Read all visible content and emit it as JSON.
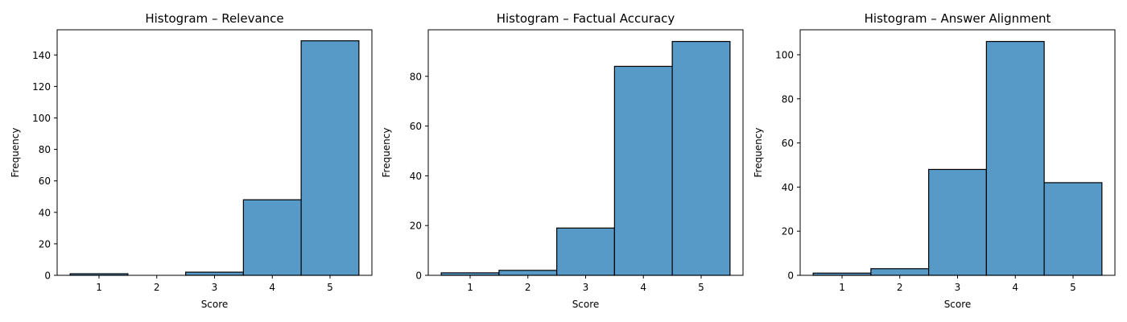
{
  "chart_data": [
    {
      "type": "bar",
      "title": "Histogram – Relevance",
      "xlabel": "Score",
      "ylabel": "Frequency",
      "categories": [
        "1",
        "2",
        "3",
        "4",
        "5"
      ],
      "values": [
        1,
        0,
        2,
        48,
        149
      ],
      "ylim": [
        0,
        156
      ],
      "yticks": [
        0,
        20,
        40,
        60,
        80,
        100,
        120,
        140
      ],
      "grid": false,
      "bar_color": "#5799c7",
      "edge_color": "#000000"
    },
    {
      "type": "bar",
      "title": "Histogram – Factual Accuracy",
      "xlabel": "Score",
      "ylabel": "Frequency",
      "categories": [
        "1",
        "2",
        "3",
        "4",
        "5"
      ],
      "values": [
        1,
        2,
        19,
        84,
        94
      ],
      "ylim": [
        0,
        98.7
      ],
      "yticks": [
        0,
        20,
        40,
        60,
        80
      ],
      "grid": false,
      "bar_color": "#5799c7",
      "edge_color": "#000000"
    },
    {
      "type": "bar",
      "title": "Histogram – Answer Alignment",
      "xlabel": "Score",
      "ylabel": "Frequency",
      "categories": [
        "1",
        "2",
        "3",
        "4",
        "5"
      ],
      "values": [
        1,
        3,
        48,
        106,
        42
      ],
      "ylim": [
        0,
        111.3
      ],
      "yticks": [
        0,
        20,
        40,
        60,
        80,
        100
      ],
      "grid": false,
      "bar_color": "#5799c7",
      "edge_color": "#000000"
    }
  ]
}
